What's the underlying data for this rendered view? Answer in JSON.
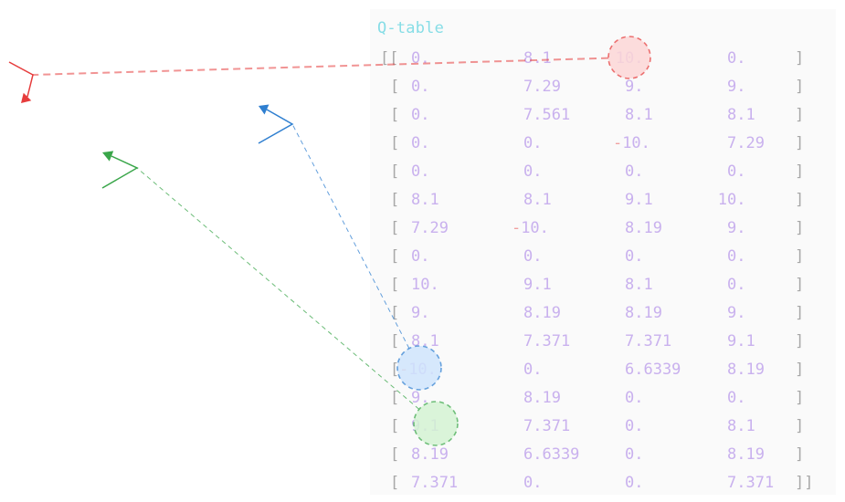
{
  "qtable": {
    "title": "Q-table",
    "rows": [
      [
        "0.",
        "8.1",
        "10.",
        "0."
      ],
      [
        "0.",
        "7.29",
        "9.",
        "9."
      ],
      [
        "0.",
        "7.561",
        "8.1",
        "8.1"
      ],
      [
        "0.",
        "0.",
        "-10.",
        "7.29"
      ],
      [
        "0.",
        "0.",
        "0.",
        "0."
      ],
      [
        "8.1",
        "8.1",
        "9.1",
        "10."
      ],
      [
        "7.29",
        "-10.",
        "8.19",
        "9."
      ],
      [
        "0.",
        "0.",
        "0.",
        "0."
      ],
      [
        "10.",
        "9.1",
        "8.1",
        "0."
      ],
      [
        "9.",
        "8.19",
        "8.19",
        "9."
      ],
      [
        "8.1",
        "7.371",
        "7.371",
        "9.1"
      ],
      [
        "-10.",
        "0.",
        "6.6339",
        "8.19"
      ],
      [
        "9.",
        "8.19",
        "0.",
        "0."
      ],
      [
        "9.1",
        "7.371",
        "0.",
        "8.1"
      ],
      [
        "8.19",
        "6.6339",
        "0.",
        "8.19"
      ],
      [
        "7.371",
        "0.",
        "0.",
        "7.371"
      ]
    ]
  },
  "annotations": [
    {
      "name": "red",
      "color": "#e63c3c",
      "fill": "#fbd6d6",
      "row": 0,
      "col": 2
    },
    {
      "name": "blue",
      "color": "#2f7fd0",
      "fill": "#cfe4fb",
      "row": 11,
      "col": 0
    },
    {
      "name": "green",
      "color": "#3aa64a",
      "fill": "#d4f2d2",
      "row": 13,
      "col": 0
    }
  ]
}
